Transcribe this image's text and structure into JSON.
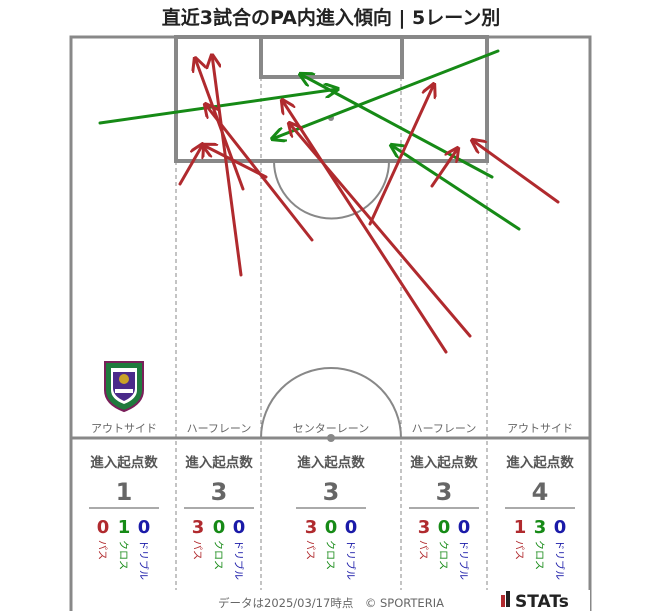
{
  "title": "直近3試合のPA内進入傾向 | 5レーン別",
  "lanes": [
    {
      "name": "アウトサイド",
      "header": "進入起点数",
      "total": "1",
      "pass": "0",
      "cross": "1",
      "dribble": "0"
    },
    {
      "name": "ハーフレーン",
      "header": "進入起点数",
      "total": "3",
      "pass": "3",
      "cross": "0",
      "dribble": "0"
    },
    {
      "name": "センターレーン",
      "header": "進入起点数",
      "total": "3",
      "pass": "3",
      "cross": "0",
      "dribble": "0"
    },
    {
      "name": "ハーフレーン",
      "header": "進入起点数",
      "total": "3",
      "pass": "3",
      "cross": "0",
      "dribble": "0"
    },
    {
      "name": "アウトサイド",
      "header": "進入起点数",
      "total": "4",
      "pass": "1",
      "cross": "3",
      "dribble": "0"
    }
  ],
  "type_labels": {
    "pass": "パス",
    "cross": "クロス",
    "dribble": "ドリブル"
  },
  "footer": "データは2025/03/17時点　© SPORTERIA",
  "brand": "STATs",
  "colors": {
    "pass": "#b02a2e",
    "cross": "#168a16",
    "dribble": "#1a1aa8",
    "lines": "#888888"
  },
  "chart_data": {
    "type": "flow-map",
    "arrows": [
      {
        "type": "cross",
        "from": [
          100,
          123
        ],
        "to": [
          338,
          89
        ]
      },
      {
        "type": "cross",
        "from": [
          498,
          51
        ],
        "to": [
          272,
          139
        ]
      },
      {
        "type": "cross",
        "from": [
          492,
          177
        ],
        "to": [
          300,
          74
        ]
      },
      {
        "type": "cross",
        "from": [
          519,
          229
        ],
        "to": [
          391,
          145
        ]
      },
      {
        "type": "pass",
        "from": [
          241,
          275
        ],
        "to": [
          212,
          55
        ]
      },
      {
        "type": "pass",
        "from": [
          243,
          189
        ],
        "to": [
          195,
          58
        ]
      },
      {
        "type": "pass",
        "from": [
          312,
          240
        ],
        "to": [
          205,
          104
        ]
      },
      {
        "type": "pass",
        "from": [
          266,
          177
        ],
        "to": [
          203,
          145
        ]
      },
      {
        "type": "pass",
        "from": [
          180,
          184
        ],
        "to": [
          203,
          144
        ]
      },
      {
        "type": "pass",
        "from": [
          370,
          224
        ],
        "to": [
          434,
          84
        ]
      },
      {
        "type": "pass",
        "from": [
          446,
          352
        ],
        "to": [
          282,
          100
        ]
      },
      {
        "type": "pass",
        "from": [
          470,
          336
        ],
        "to": [
          289,
          123
        ]
      },
      {
        "type": "pass",
        "from": [
          432,
          186
        ],
        "to": [
          458,
          148
        ]
      },
      {
        "type": "pass",
        "from": [
          558,
          202
        ],
        "to": [
          472,
          140
        ]
      }
    ]
  }
}
